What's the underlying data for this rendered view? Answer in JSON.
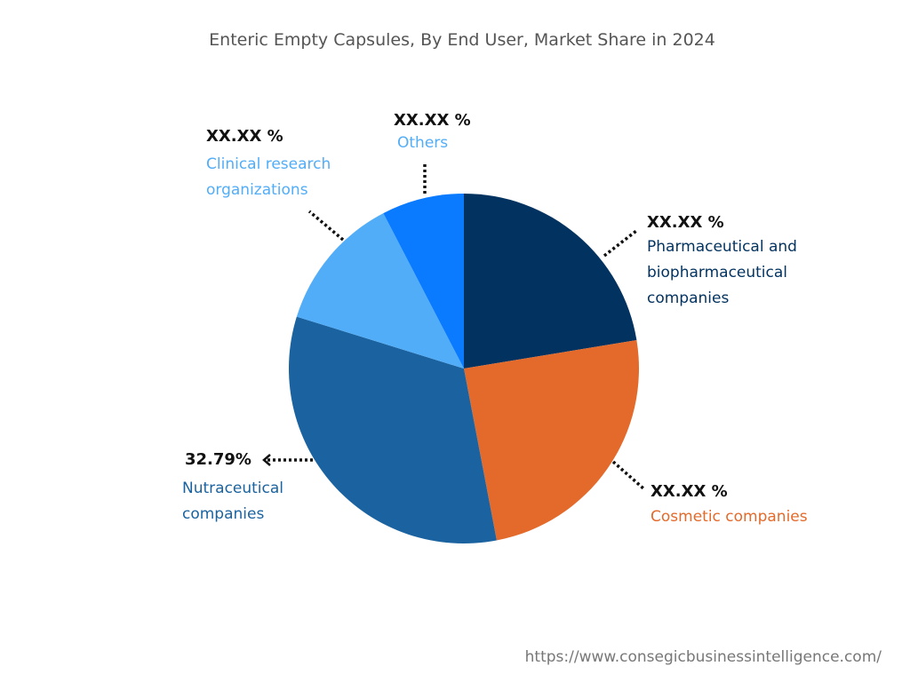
{
  "chart_data": {
    "type": "pie",
    "title": "Enteric Empty Capsules, By End User, Market Share in 2024",
    "categories": [
      "Pharmaceutical and biopharmaceutical companies",
      "Cosmetic companies",
      "Nutraceutical companies",
      "Clinical research organizations",
      "Others"
    ],
    "values": [
      22.4,
      24.6,
      32.79,
      12.6,
      7.61
    ],
    "value_labels": [
      "XX.XX %",
      "XX.XX %",
      "32.79%",
      "XX.XX %",
      "XX.XX %"
    ],
    "colors": [
      "#02325f",
      "#e36a2a",
      "#1a63a0",
      "#52adf8",
      "#0a7bff"
    ],
    "source": "https://www.consegicbusinessintelligence.com/"
  }
}
